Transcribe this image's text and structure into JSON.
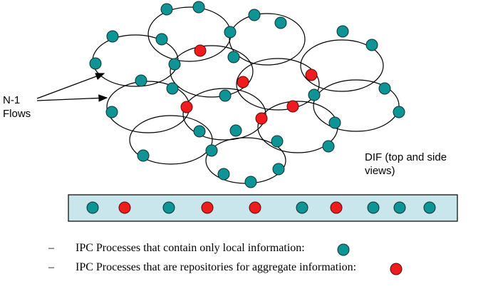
{
  "colors": {
    "local_node": "#0e9494",
    "aggregate_node": "#ee1c1c",
    "node_outline": "#0a3333",
    "side_view_fill": "#c8e6ec"
  },
  "labels": {
    "flows_label": "N-1\nFlows",
    "dif_label": "DIF (top and side\nviews)"
  },
  "legend": [
    {
      "dash": "–",
      "text": "IPC Processes that contain only local information:",
      "kind": "local"
    },
    {
      "dash": "–",
      "text": "IPC Processes that are repositories for aggregate information:",
      "kind": "aggregate"
    }
  ],
  "side_view_nodes": [
    "local",
    "aggregate",
    "local",
    "aggregate",
    "aggregate",
    "local",
    "aggregate",
    "local",
    "local",
    "local"
  ]
}
